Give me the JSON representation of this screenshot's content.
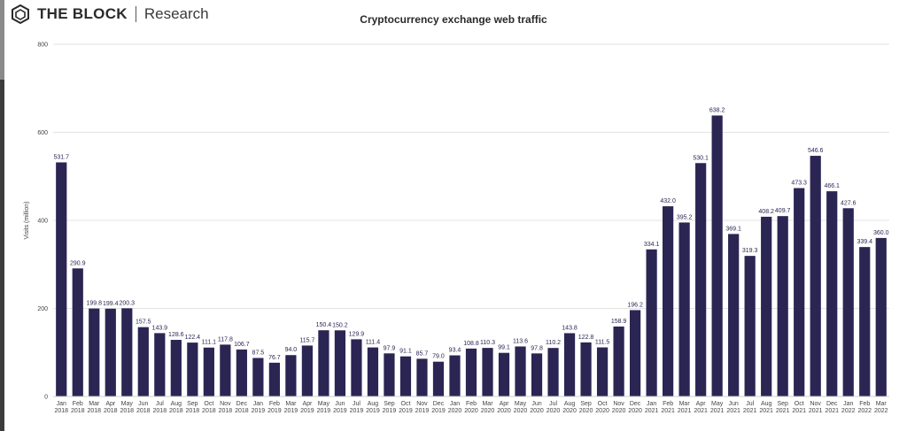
{
  "brand": {
    "name": "THE BLOCK",
    "sub": "Research"
  },
  "colors": {
    "bar": "#2b2553",
    "grid": "#e3e3e3",
    "axis": "#444444"
  },
  "chart_data": {
    "type": "bar",
    "title": "Cryptocurrency exchange web traffic",
    "ylabel": "Visits (million)",
    "ylim": [
      0,
      800
    ],
    "yticks": [
      0,
      200,
      400,
      600,
      800
    ],
    "grid": true,
    "categories": [
      "Jan 2018",
      "Feb 2018",
      "Mar 2018",
      "Apr 2018",
      "May 2018",
      "Jun 2018",
      "Jul 2018",
      "Aug 2018",
      "Sep 2018",
      "Oct 2018",
      "Nov 2018",
      "Dec 2018",
      "Jan 2019",
      "Feb 2019",
      "Mar 2019",
      "Apr 2019",
      "May 2019",
      "Jun 2019",
      "Jul 2019",
      "Aug 2019",
      "Sep 2019",
      "Oct 2019",
      "Nov 2019",
      "Dec 2019",
      "Jan 2020",
      "Feb 2020",
      "Mar 2020",
      "Apr 2020",
      "May 2020",
      "Jun 2020",
      "Jul 2020",
      "Aug 2020",
      "Sep 2020",
      "Oct 2020",
      "Nov 2020",
      "Dec 2020",
      "Jan 2021",
      "Feb 2021",
      "Mar 2021",
      "Apr 2021",
      "May 2021",
      "Jun 2021",
      "Jul 2021",
      "Aug 2021",
      "Sep 2021",
      "Oct 2021",
      "Nov 2021",
      "Dec 2021",
      "Jan 2022",
      "Feb 2022",
      "Mar 2022"
    ],
    "values": [
      531.7,
      290.9,
      199.8,
      199.4,
      200.3,
      157.5,
      143.9,
      128.6,
      122.4,
      111.1,
      117.8,
      106.7,
      87.5,
      76.7,
      94.0,
      115.7,
      150.4,
      150.2,
      129.9,
      111.4,
      97.9,
      91.1,
      85.7,
      79.0,
      93.4,
      108.8,
      110.3,
      99.1,
      113.6,
      97.8,
      110.2,
      143.8,
      122.8,
      111.5,
      158.9,
      196.2,
      334.1,
      432.0,
      395.2,
      530.1,
      638.2,
      369.1,
      319.3,
      408.2,
      409.7,
      473.3,
      546.6,
      466.1,
      427.6,
      339.4,
      360.0
    ],
    "value_labels": [
      "531.7",
      "290.9",
      "199.8",
      "199.4",
      "200.3",
      "157.5",
      "143.9",
      "128.6",
      "122.4",
      "111.1",
      "117.8",
      "106.7",
      "87.5",
      "76.7",
      "94.0",
      "115.7",
      "150.4",
      "150.2",
      "129.9",
      "111.4",
      "97.9",
      "91.1",
      "85.7",
      "79.0",
      "93.4",
      "108.8",
      "110.3",
      "99.1",
      "113.6",
      "97.8",
      "110.2",
      "143.8",
      "122.8",
      "111.5",
      "158.9",
      "196.2",
      "334.1",
      "432.0",
      "395.2",
      "530.1",
      "638.2",
      "369.1",
      "319.3",
      "408.2",
      "409.7",
      "473.3",
      "546.6",
      "466.1",
      "427.6",
      "339.4",
      "360.0"
    ]
  }
}
